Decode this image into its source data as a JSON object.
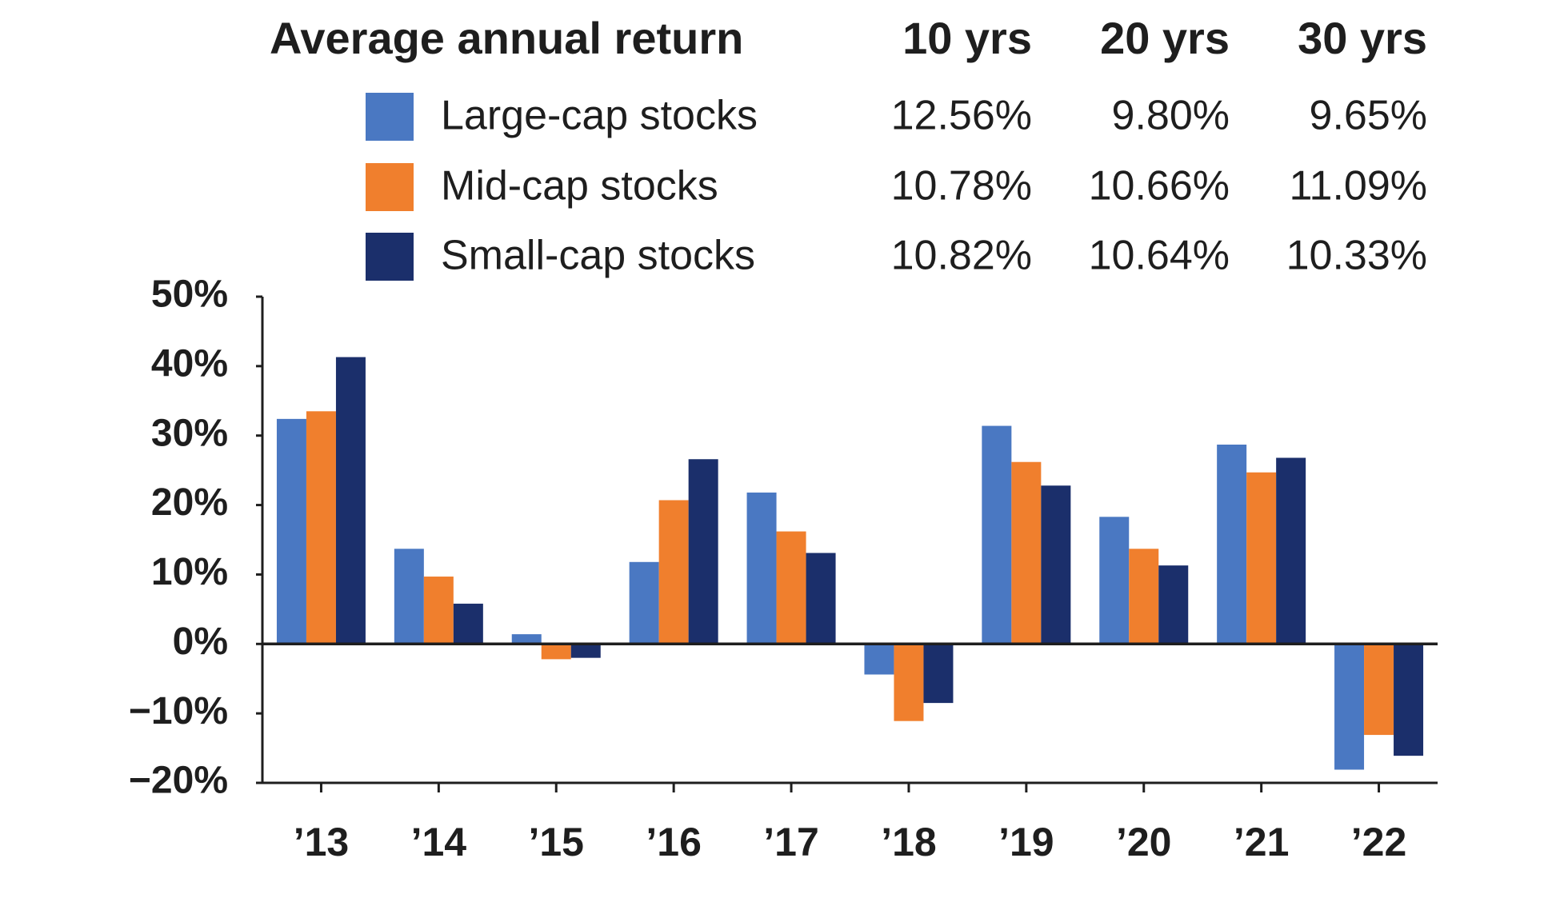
{
  "chart_data": {
    "type": "bar",
    "table_title": "Average annual return",
    "table_columns": [
      "10 yrs",
      "20 yrs",
      "30 yrs"
    ],
    "categories": [
      "’13",
      "’14",
      "’15",
      "’16",
      "’17",
      "’18",
      "’19",
      "’20",
      "’21",
      "’22"
    ],
    "series": [
      {
        "name": "Large-cap stocks",
        "color": "#4a78c2",
        "averages": [
          "12.56%",
          "9.80%",
          "9.65%"
        ],
        "values": [
          32.4,
          13.7,
          1.4,
          11.8,
          21.8,
          -4.4,
          31.4,
          18.3,
          28.7,
          -18.1
        ]
      },
      {
        "name": "Mid-cap stocks",
        "color": "#f07f2d",
        "averages": [
          "10.78%",
          "10.66%",
          "11.09%"
        ],
        "values": [
          33.5,
          9.7,
          -2.2,
          20.7,
          16.2,
          -11.1,
          26.2,
          13.7,
          24.7,
          -13.1
        ]
      },
      {
        "name": "Small-cap stocks",
        "color": "#1b2f6b",
        "averages": [
          "10.82%",
          "10.64%",
          "10.33%"
        ],
        "values": [
          41.3,
          5.8,
          -2.0,
          26.6,
          13.1,
          -8.5,
          22.8,
          11.3,
          26.8,
          -16.1
        ]
      }
    ],
    "ylim": [
      -20,
      50
    ],
    "yticks": [
      {
        "value": 50,
        "label": "50%"
      },
      {
        "value": 40,
        "label": "40%"
      },
      {
        "value": 30,
        "label": "30%"
      },
      {
        "value": 20,
        "label": "20%"
      },
      {
        "value": 10,
        "label": "10%"
      },
      {
        "value": 0,
        "label": "0%"
      },
      {
        "value": -10,
        "label": "−10%"
      },
      {
        "value": -20,
        "label": "−20%"
      }
    ]
  }
}
